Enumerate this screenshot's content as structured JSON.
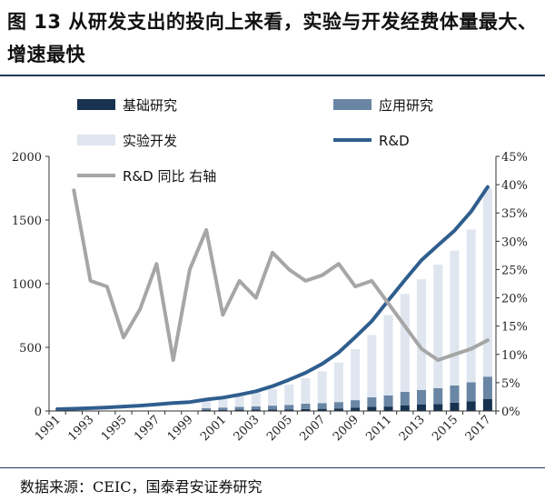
{
  "header": {
    "title": "图 13 从研发支出的投向上来看，实验与开发经费体量最大、增速最快"
  },
  "footer": {
    "source": "数据来源：CEIC，国泰君安证券研究"
  },
  "colors": {
    "basic": "#17334f",
    "applied": "#6a86a5",
    "experimental": "#dfe6ef",
    "rd_line": "#2f5e8e",
    "yoy_line": "#a6a6a6",
    "rule": "#1f3a5a"
  },
  "chart_data": {
    "type": "bar",
    "stacked": true,
    "categories": [
      1991,
      1992,
      1993,
      1994,
      1995,
      1996,
      1997,
      1998,
      1999,
      2000,
      2001,
      2002,
      2003,
      2004,
      2005,
      2006,
      2007,
      2008,
      2009,
      2010,
      2011,
      2012,
      2013,
      2014,
      2015,
      2016,
      2017
    ],
    "x_tick_labels": [
      "1991",
      "1993",
      "1995",
      "1997",
      "1999",
      "2001",
      "2003",
      "2005",
      "2007",
      "2009",
      "2011",
      "2013",
      "2015",
      "2017"
    ],
    "series": [
      {
        "name": "基础研究",
        "axis": "left",
        "values": [
          0,
          0,
          0,
          0,
          0,
          0,
          0,
          0,
          0,
          8,
          9,
          10,
          11,
          12,
          13,
          15,
          17,
          20,
          25,
          32,
          35,
          45,
          50,
          55,
          65,
          75,
          95
        ]
      },
      {
        "name": "应用研究",
        "axis": "left",
        "values": [
          0,
          0,
          0,
          0,
          0,
          0,
          0,
          0,
          0,
          15,
          18,
          22,
          25,
          30,
          35,
          42,
          45,
          50,
          60,
          75,
          88,
          105,
          115,
          125,
          135,
          150,
          175
        ]
      },
      {
        "name": "实验开发",
        "axis": "left",
        "values": [
          0,
          0,
          0,
          0,
          0,
          0,
          0,
          0,
          0,
          66,
          70,
          85,
          110,
          130,
          160,
          200,
          250,
          310,
          400,
          490,
          630,
          770,
          870,
          970,
          1060,
          1200,
          1480
        ]
      },
      {
        "name": "R&D",
        "axis": "left",
        "type": "line",
        "values": [
          14,
          18,
          22,
          28,
          35,
          42,
          52,
          62,
          70,
          90,
          105,
          128,
          155,
          195,
          245,
          300,
          370,
          460,
          580,
          706,
          869,
          1029,
          1185,
          1302,
          1417,
          1567,
          1760
        ]
      },
      {
        "name": "R&D 同比 右轴",
        "axis": "right",
        "type": "line",
        "values": [
          null,
          39,
          23,
          22,
          13,
          18,
          26,
          9,
          25,
          32,
          17,
          23,
          20,
          28,
          25,
          23,
          24,
          26,
          22,
          23,
          19,
          15,
          11,
          9,
          10,
          11,
          12.5
        ]
      }
    ],
    "y_left": {
      "min": 0,
      "max": 2000,
      "ticks": [
        "0",
        "500",
        "1000",
        "1500",
        "2000"
      ]
    },
    "y_right": {
      "min": 0,
      "max": 45,
      "ticks": [
        "0%",
        "5%",
        "10%",
        "15%",
        "20%",
        "25%",
        "30%",
        "35%",
        "40%",
        "45%"
      ]
    },
    "legend": {
      "placement": "top",
      "items": [
        {
          "label": "基础研究",
          "kind": "bar"
        },
        {
          "label": "应用研究",
          "kind": "bar"
        },
        {
          "label": "实验开发",
          "kind": "bar"
        },
        {
          "label": "R&D",
          "kind": "line"
        },
        {
          "label": "R&D 同比 右轴",
          "kind": "line"
        }
      ]
    }
  }
}
